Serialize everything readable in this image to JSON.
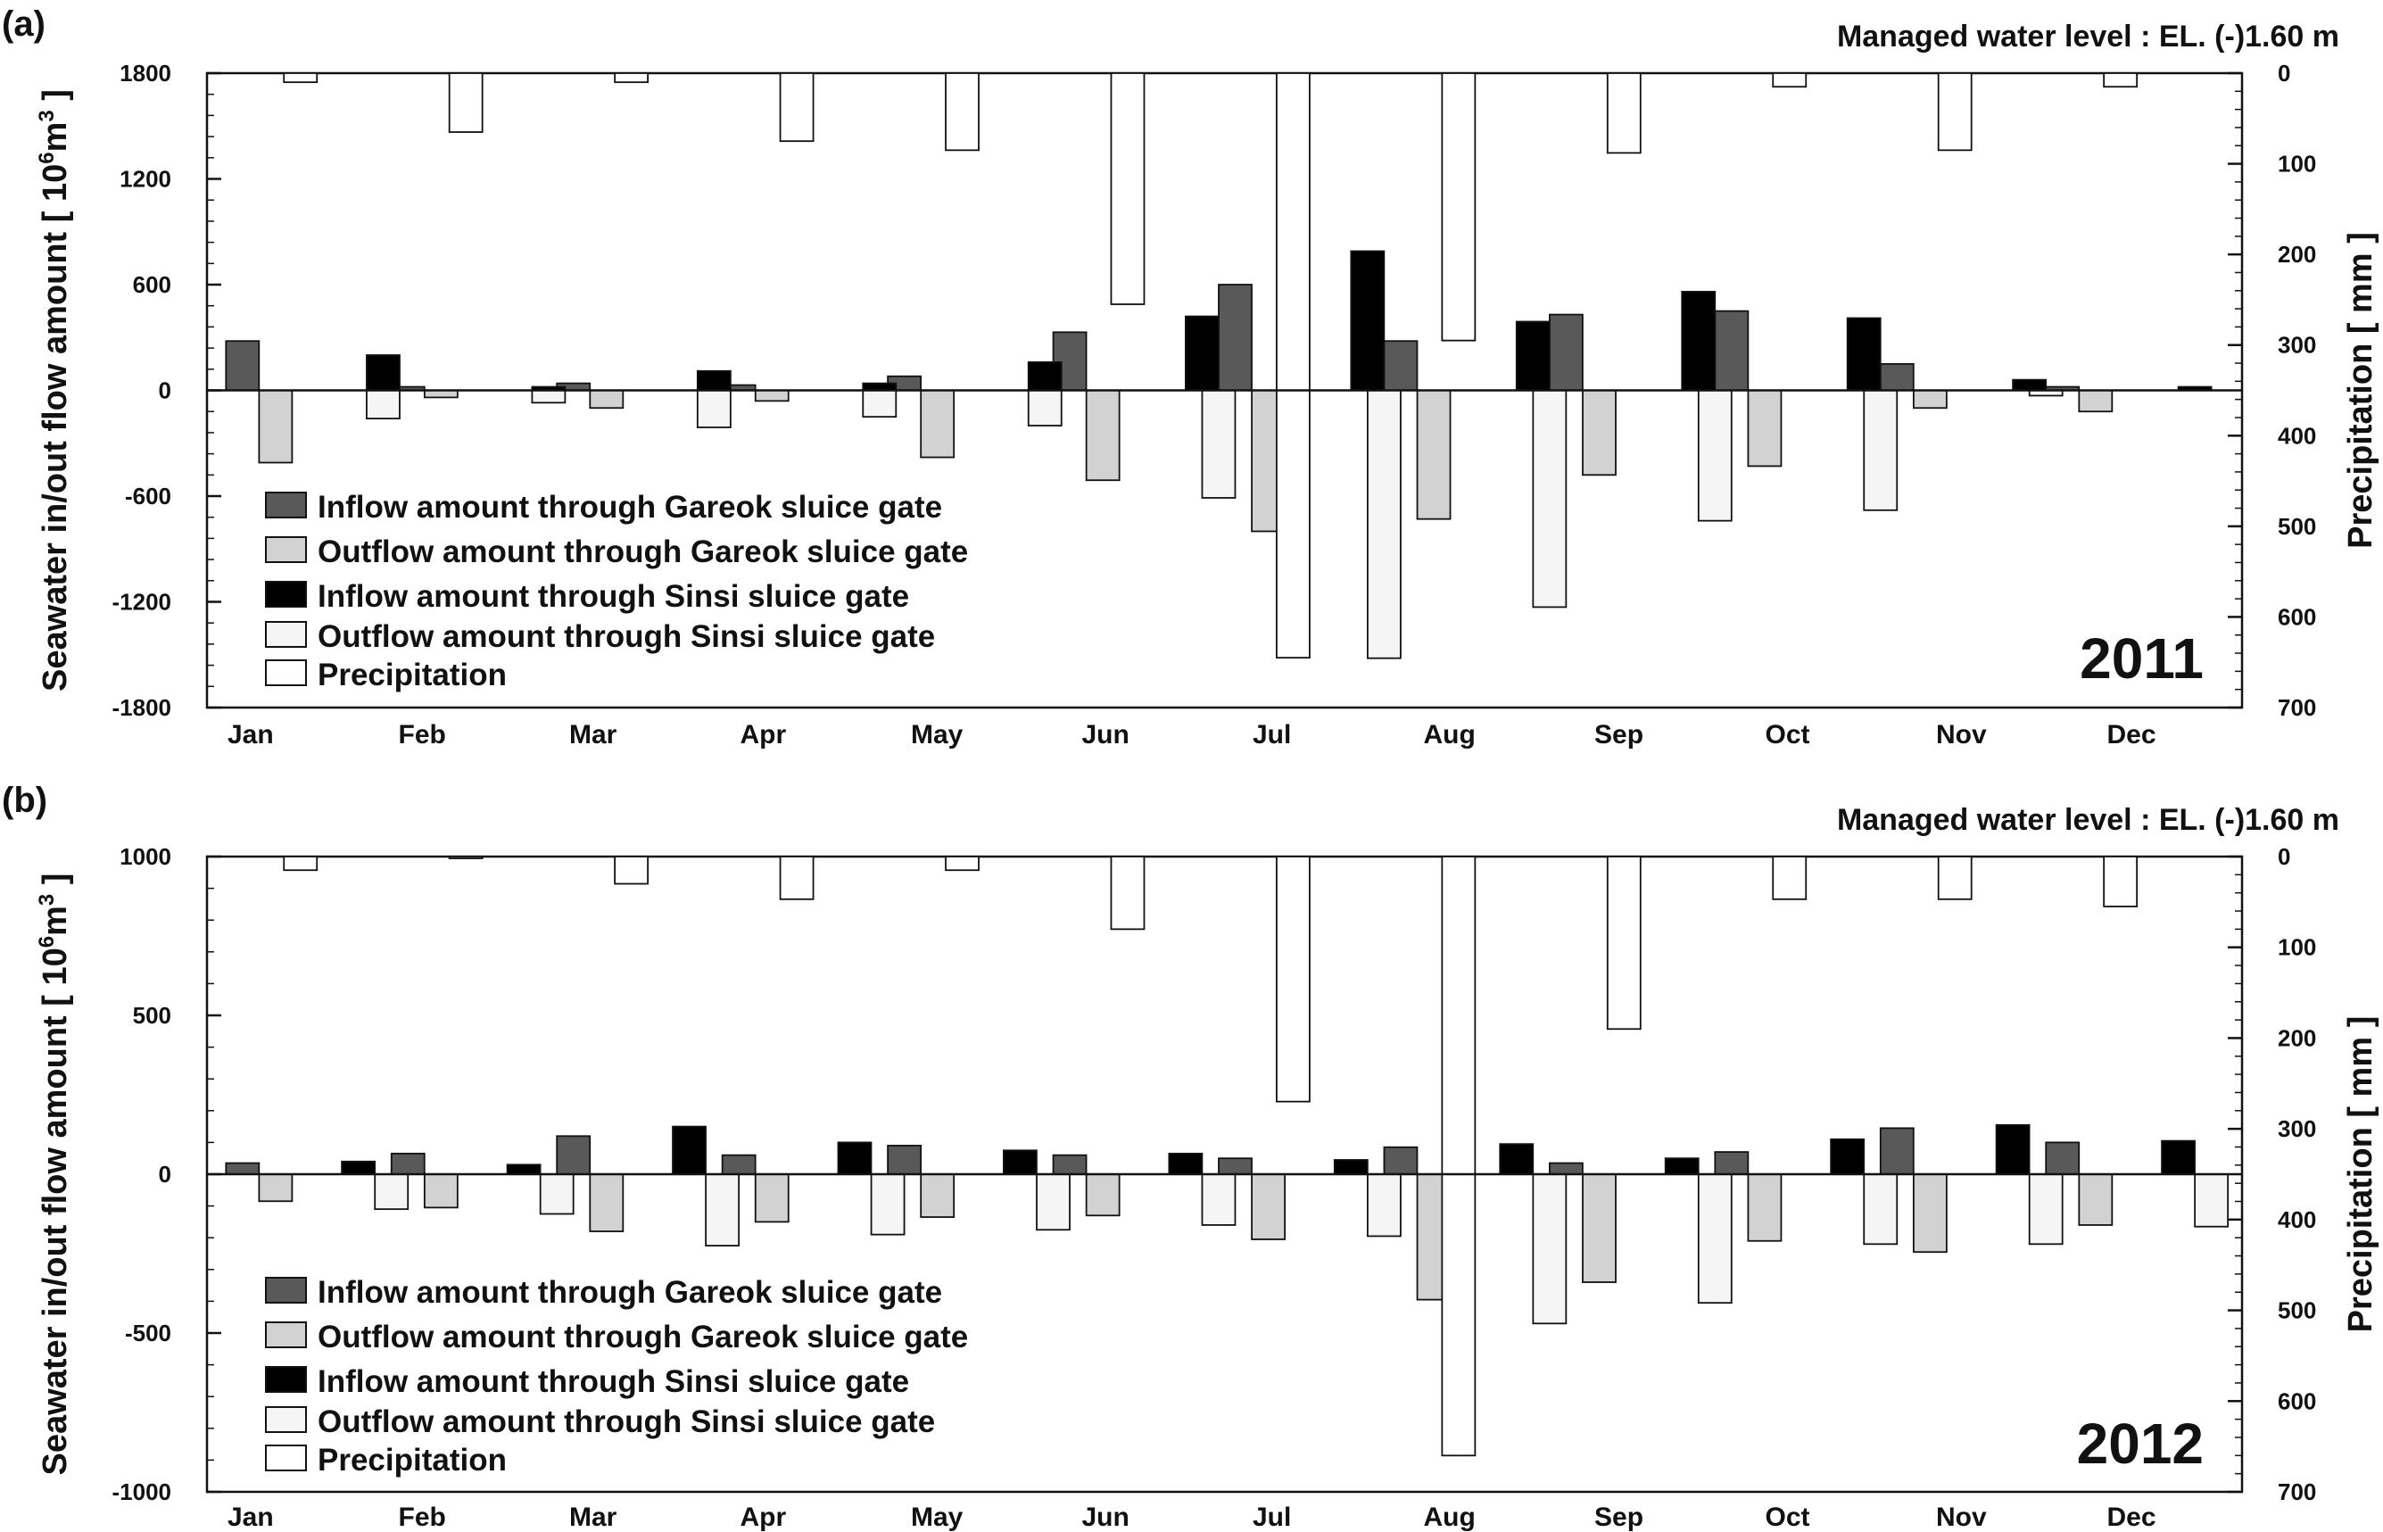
{
  "colors": {
    "gareok_inflow": "#595959",
    "gareok_outflow": "#d2d2d2",
    "sinsi_inflow": "#000000",
    "sinsi_outflow": "#f5f5f5",
    "precipitation": "#ffffff",
    "outline": "#111111"
  },
  "chart_data": [
    {
      "type": "bar",
      "panel_label": "(a)",
      "year": "2011",
      "note": "Managed water level : EL. (-)1.60 m",
      "ylabel": "Seawater in/out flow amount [ 10⁶m³ ]",
      "ylabel_html": [
        "Seawater in/out flow amount [ 10",
        "6",
        "m",
        "3",
        " ]"
      ],
      "y2label": "Precipitation [ mm ]",
      "ylim": [
        -1800,
        1800
      ],
      "yticks": [
        -1800,
        -1200,
        -600,
        0,
        600,
        1200,
        1800
      ],
      "y2lim": [
        0,
        700
      ],
      "y2ticks": [
        0,
        100,
        200,
        300,
        400,
        500,
        600,
        700
      ],
      "y2_inverted": true,
      "months": [
        "Jan",
        "Feb",
        "Mar",
        "Apr",
        "May",
        "Jun",
        "Jul",
        "Aug",
        "Sep",
        "Oct",
        "Nov",
        "Dec"
      ],
      "series": [
        {
          "key": "gareok_inflow",
          "name": "Inflow amount through Gareok sluice gate",
          "axis": "left",
          "x": [
            0.15,
            1.15,
            2.15,
            3.15,
            4.15,
            5.15,
            6.15,
            7.15,
            8.15,
            9.15,
            10.15,
            11.15
          ],
          "values": [
            280,
            20,
            40,
            30,
            80,
            330,
            600,
            280,
            430,
            450,
            150,
            20
          ]
        },
        {
          "key": "gareok_outflow",
          "name": "Outflow amount through Gareok sluice gate",
          "axis": "left",
          "x": [
            0.35,
            1.35,
            2.35,
            3.35,
            4.35,
            5.35,
            6.35,
            7.35,
            8.35,
            9.35,
            10.35,
            11.35
          ],
          "values": [
            -410,
            -40,
            -100,
            -60,
            -380,
            -510,
            -800,
            -730,
            -480,
            -430,
            -100,
            -120
          ]
        },
        {
          "key": "sinsi_inflow",
          "name": "Inflow amount through Sinsi sluice gate",
          "axis": "left",
          "x": [
            1.0,
            2.0,
            3.0,
            4.0,
            5.0,
            5.95,
            6.95,
            7.95,
            8.95,
            9.95,
            10.95,
            11.95
          ],
          "values": [
            200,
            20,
            110,
            40,
            160,
            420,
            790,
            390,
            560,
            410,
            60,
            20
          ]
        },
        {
          "key": "sinsi_outflow",
          "name": "Outflow amount through Sinsi sluice gate",
          "axis": "left",
          "x": [
            1.0,
            2.0,
            3.0,
            4.0,
            5.0,
            6.05,
            7.05,
            8.05,
            9.05,
            10.05,
            11.05,
            12.05
          ],
          "values": [
            -160,
            -70,
            -210,
            -150,
            -200,
            -610,
            -1520,
            -1230,
            -740,
            -680,
            -30,
            0
          ]
        },
        {
          "key": "precipitation",
          "name": "Precipitation",
          "axis": "right",
          "x": [
            0.5,
            1.5,
            2.5,
            3.5,
            4.5,
            5.5,
            6.5,
            7.5,
            8.5,
            9.5,
            10.5,
            11.5
          ],
          "values": [
            10,
            65,
            10,
            75,
            85,
            255,
            645,
            295,
            88,
            15,
            85,
            15
          ]
        }
      ]
    },
    {
      "type": "bar",
      "panel_label": "(b)",
      "year": "2012",
      "note": "Managed water level : EL. (-)1.60 m",
      "ylabel": "Seawater in/out flow amount [ 10⁶m³ ]",
      "ylabel_html": [
        "Seawater in/out flow amount [ 10",
        "6",
        "m",
        "3",
        " ]"
      ],
      "y2label": "Precipitation [ mm ]",
      "ylim": [
        -1000,
        1000
      ],
      "yticks": [
        -1000,
        -500,
        0,
        500,
        1000
      ],
      "y2lim": [
        0,
        700
      ],
      "y2ticks": [
        0,
        100,
        200,
        300,
        400,
        500,
        600,
        700
      ],
      "y2_inverted": true,
      "months": [
        "Jan",
        "Feb",
        "Mar",
        "Apr",
        "May",
        "Jun",
        "Jul",
        "Aug",
        "Sep",
        "Oct",
        "Nov",
        "Dec"
      ],
      "series": [
        {
          "key": "gareok_inflow",
          "name": "Inflow amount through Gareok sluice gate",
          "axis": "left",
          "x": [
            0.15,
            1.15,
            2.15,
            3.15,
            4.15,
            5.15,
            6.15,
            7.15,
            8.15,
            9.15,
            10.15,
            11.15
          ],
          "values": [
            35,
            65,
            120,
            60,
            90,
            60,
            50,
            85,
            35,
            70,
            145,
            100
          ]
        },
        {
          "key": "gareok_outflow",
          "name": "Outflow amount through Gareok sluice gate",
          "axis": "left",
          "x": [
            0.35,
            1.35,
            2.35,
            3.35,
            4.35,
            5.35,
            6.35,
            7.35,
            8.35,
            9.35,
            10.35,
            11.35
          ],
          "values": [
            -85,
            -105,
            -180,
            -150,
            -135,
            -130,
            -205,
            -395,
            -340,
            -210,
            -245,
            -160
          ]
        },
        {
          "key": "sinsi_inflow",
          "name": "Inflow amount through Sinsi sluice gate",
          "axis": "left",
          "x": [
            0.85,
            1.85,
            2.85,
            3.85,
            4.85,
            5.85,
            6.85,
            7.85,
            8.85,
            9.85,
            10.85,
            11.85
          ],
          "values": [
            40,
            30,
            150,
            100,
            75,
            65,
            45,
            95,
            50,
            110,
            155,
            105
          ]
        },
        {
          "key": "sinsi_outflow",
          "name": "Outflow amount through Sinsi sluice gate",
          "axis": "left",
          "x": [
            1.05,
            2.05,
            3.05,
            4.05,
            5.05,
            6.05,
            7.05,
            8.05,
            9.05,
            10.05,
            11.05,
            12.05
          ],
          "values": [
            -110,
            -125,
            -225,
            -190,
            -175,
            -160,
            -195,
            -470,
            -405,
            -220,
            -220,
            -165
          ]
        },
        {
          "key": "precipitation",
          "name": "Precipitation",
          "axis": "right",
          "x": [
            0.5,
            1.5,
            2.5,
            3.5,
            4.5,
            5.5,
            6.5,
            7.5,
            8.5,
            9.5,
            10.5,
            11.5
          ],
          "values": [
            15,
            2,
            30,
            47,
            15,
            80,
            270,
            660,
            190,
            47,
            47,
            55
          ]
        }
      ]
    }
  ]
}
